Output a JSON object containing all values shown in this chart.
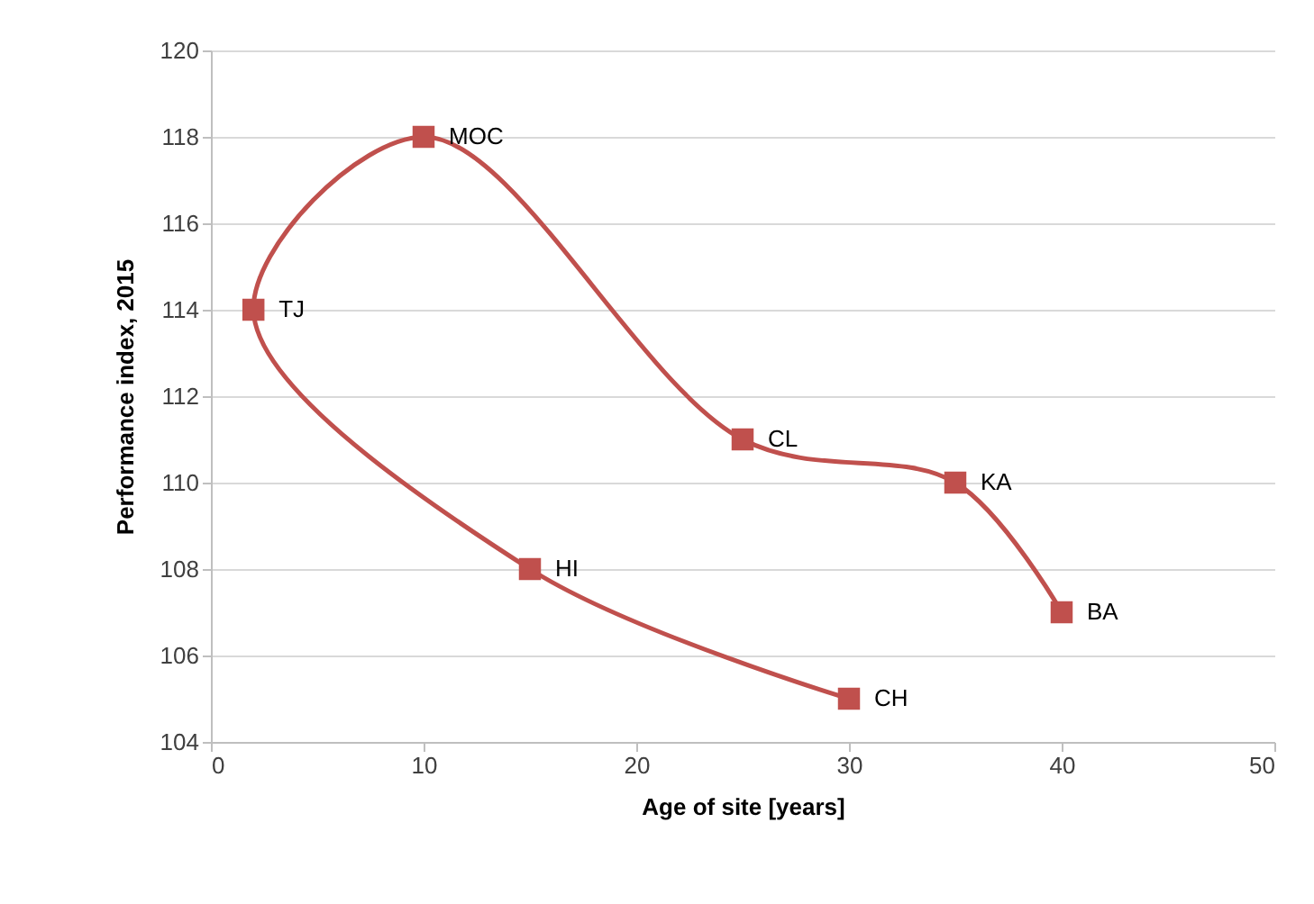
{
  "chart_data": {
    "type": "line",
    "xlabel": "Age of site [years]",
    "ylabel": "Performance index, 2015",
    "x": [
      40,
      35,
      25,
      10,
      2,
      15,
      30
    ],
    "series": [
      {
        "color": "#c0504d",
        "values": [
          107,
          110,
          111,
          118,
          114,
          108,
          105
        ]
      }
    ],
    "annotations": [
      {
        "text": "BA",
        "x": 40,
        "y": 107
      },
      {
        "text": "KA",
        "x": 35,
        "y": 110
      },
      {
        "text": "CL",
        "x": 25,
        "y": 111
      },
      {
        "text": "MOC",
        "x": 10,
        "y": 118
      },
      {
        "text": "TJ",
        "x": 2,
        "y": 114
      },
      {
        "text": "HI",
        "x": 15,
        "y": 108
      },
      {
        "text": "CH",
        "x": 30,
        "y": 105
      }
    ],
    "xlim": [
      0,
      50
    ],
    "xticks": [
      0,
      10,
      20,
      30,
      40,
      50
    ],
    "ylim": [
      104,
      120
    ],
    "yticks": [
      104,
      106,
      108,
      110,
      112,
      114,
      116,
      118,
      120
    ],
    "grid": "y",
    "marker": "square",
    "line_style": "solid"
  }
}
